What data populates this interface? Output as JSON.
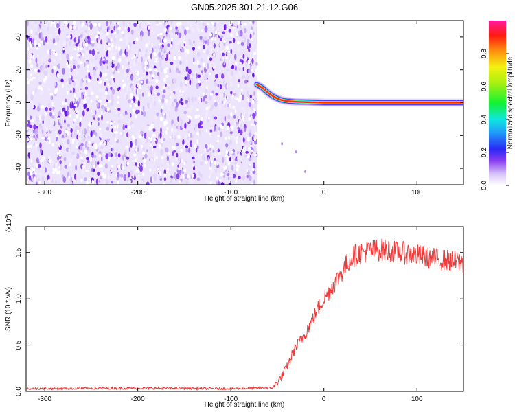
{
  "title": "GN05.2025.301.21.12.G06",
  "chart_data": [
    {
      "type": "heatmap",
      "xlabel": "Height of straight line (km)",
      "ylabel": "Frequency (Hz)",
      "xlim": [
        -320,
        150
      ],
      "ylim": [
        -50,
        50
      ],
      "xticks": [
        -300,
        -200,
        -100,
        0,
        100
      ],
      "yticks": [
        -40,
        -20,
        0,
        20,
        40
      ],
      "noise_region": {
        "x": [
          -320,
          -72
        ],
        "y": [
          -50,
          50
        ]
      },
      "signal_track": {
        "x": [
          -72,
          -66,
          -60,
          -55,
          -50,
          -45,
          -40,
          -30,
          0,
          50,
          100,
          150
        ],
        "y": [
          11,
          9,
          6,
          4,
          2.5,
          1.5,
          1,
          0.5,
          0,
          0,
          0,
          0
        ]
      },
      "colorbar": {
        "label": "Normalized spectral amplitude",
        "range": [
          0.0,
          1.0
        ],
        "ticks": [
          0.0,
          0.2,
          0.4,
          0.6,
          0.8
        ],
        "tick_labels": [
          "0.0",
          "0.2",
          "0.4",
          "0.6",
          "0.8"
        ]
      },
      "grid": false
    },
    {
      "type": "line",
      "xlabel": "Height of straight line (km)",
      "ylabel": "SNR (10 * v/v)",
      "y_multiplier_label": "(x10",
      "y_multiplier_exp": "4",
      "xlim": [
        -320,
        150
      ],
      "ylim": [
        0,
        1.78
      ],
      "xticks": [
        -300,
        -200,
        -100,
        0,
        100
      ],
      "yticks": [
        0.0,
        0.5,
        1.0,
        1.5
      ],
      "ytick_labels": [
        "0.0",
        "0.5",
        "1.0",
        "1.5"
      ],
      "series": [
        {
          "color": "#ee3b3b",
          "x": [
            -320,
            -200,
            -100,
            -55,
            -50,
            -46,
            -42,
            -38,
            -34,
            -30,
            -25,
            -20,
            -15,
            -10,
            -5,
            0,
            5,
            10,
            15,
            20,
            25,
            30,
            35,
            40,
            50,
            60,
            70,
            80,
            90,
            100,
            110,
            120,
            130,
            140,
            150
          ],
          "y": [
            0.03,
            0.035,
            0.03,
            0.04,
            0.1,
            0.15,
            0.22,
            0.3,
            0.4,
            0.48,
            0.55,
            0.63,
            0.72,
            0.82,
            0.92,
            1.0,
            1.07,
            1.15,
            1.22,
            1.3,
            1.38,
            1.45,
            1.48,
            1.5,
            1.52,
            1.53,
            1.52,
            1.5,
            1.49,
            1.47,
            1.45,
            1.43,
            1.42,
            1.4,
            1.39
          ]
        }
      ],
      "grid": false
    }
  ]
}
